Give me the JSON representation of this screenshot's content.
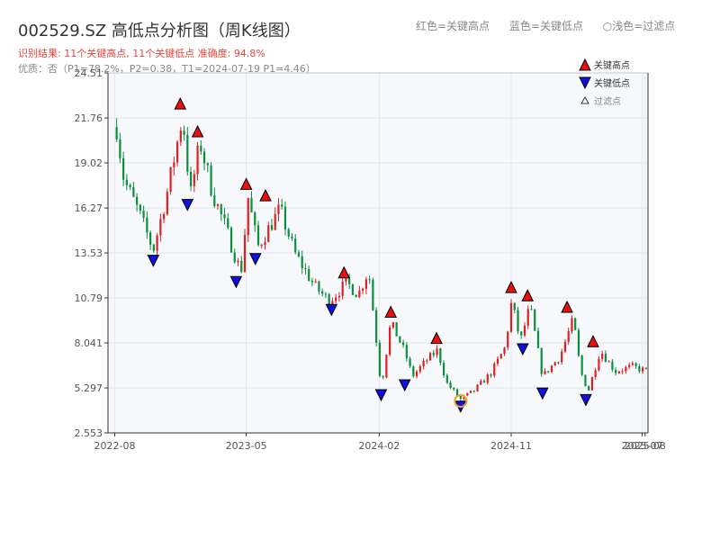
{
  "header": {
    "title": "002529.SZ 高低点分析图（周K线图）",
    "legend_top": [
      "红色=关键高点",
      "蓝色=关键低点",
      "○浅色=过滤点"
    ],
    "result_line": "识别结果: 11个关键高点, 11个关键低点   准确度: 94.8%",
    "quality_line": "优质：否（P1=78.2%，P2=0.38，T1=2024-07-19 P1=4.46）"
  },
  "chart_data": {
    "type": "candlestick",
    "title": "002529.SZ 高低点分析图（周K线图）",
    "y_ticks": [
      "2.553",
      "5.297",
      "8.041",
      "10.79",
      "13.53",
      "16.27",
      "19.02",
      "21.76",
      "24.51"
    ],
    "ylim": [
      2.553,
      24.51
    ],
    "x_ticks": [
      "2022-08",
      "2023-05",
      "2024-02",
      "2024-11",
      "2025-07",
      "2025-08"
    ],
    "xlim": [
      "2022-08",
      "2025-08"
    ],
    "legend": [
      "关键高点",
      "关键低点",
      "过滤点"
    ],
    "colors": {
      "up": "#dd2020",
      "down": "#0a8f3c",
      "high_marker": "#e81010",
      "low_marker": "#1010e0",
      "filtered": "#f0a020"
    },
    "close_path": [
      [
        "2022-08-05",
        21.2
      ],
      [
        "2022-08-20",
        18.0
      ],
      [
        "2022-09-20",
        16.0
      ],
      [
        "2022-10-20",
        13.7
      ],
      [
        "2022-11-20",
        17.5
      ],
      [
        "2022-12-20",
        21.9
      ],
      [
        "2023-01-05",
        17.0
      ],
      [
        "2023-01-25",
        20.3
      ],
      [
        "2023-02-20",
        17.2
      ],
      [
        "2023-03-20",
        15.0
      ],
      [
        "2023-04-20",
        12.3
      ],
      [
        "2023-05-05",
        16.9
      ],
      [
        "2023-05-25",
        13.9
      ],
      [
        "2023-07-10",
        16.2
      ],
      [
        "2023-08-10",
        13.5
      ],
      [
        "2023-09-20",
        11.5
      ],
      [
        "2023-10-20",
        10.6
      ],
      [
        "2023-11-25",
        11.7
      ],
      [
        "2023-12-20",
        11.0
      ],
      [
        "2024-01-10",
        12.5
      ],
      [
        "2024-01-25",
        8.5
      ],
      [
        "2024-02-05",
        5.3
      ],
      [
        "2024-02-25",
        9.3
      ],
      [
        "2024-03-25",
        7.5
      ],
      [
        "2024-04-10",
        6.0
      ],
      [
        "2024-05-10",
        7.0
      ],
      [
        "2024-06-01",
        7.6
      ],
      [
        "2024-06-20",
        5.6
      ],
      [
        "2024-07-19",
        4.6
      ],
      [
        "2024-08-15",
        5.1
      ],
      [
        "2024-09-20",
        6.2
      ],
      [
        "2024-10-20",
        7.8
      ],
      [
        "2024-11-02",
        10.6
      ],
      [
        "2024-11-20",
        8.1
      ],
      [
        "2024-12-10",
        10.3
      ],
      [
        "2025-01-05",
        6.0
      ],
      [
        "2025-02-10",
        7.2
      ],
      [
        "2025-03-10",
        9.5
      ],
      [
        "2025-03-25",
        6.3
      ],
      [
        "2025-04-10",
        5.1
      ],
      [
        "2025-05-05",
        7.6
      ],
      [
        "2025-06-05",
        6.3
      ],
      [
        "2025-07-10",
        6.6
      ],
      [
        "2025-08-10",
        6.3
      ]
    ],
    "key_highs": [
      {
        "date": "2022-12-15",
        "price": 22.2
      },
      {
        "date": "2023-01-20",
        "price": 20.5
      },
      {
        "date": "2023-05-01",
        "price": 17.3
      },
      {
        "date": "2023-06-10",
        "price": 16.6
      },
      {
        "date": "2023-11-20",
        "price": 11.9
      },
      {
        "date": "2024-02-25",
        "price": 9.5
      },
      {
        "date": "2024-05-30",
        "price": 7.9
      },
      {
        "date": "2024-11-01",
        "price": 11.0
      },
      {
        "date": "2024-12-05",
        "price": 10.5
      },
      {
        "date": "2025-02-25",
        "price": 9.8
      },
      {
        "date": "2025-04-20",
        "price": 7.7
      }
    ],
    "key_lows": [
      {
        "date": "2022-10-20",
        "price": 13.5
      },
      {
        "date": "2022-12-30",
        "price": 16.9
      },
      {
        "date": "2023-04-10",
        "price": 12.2
      },
      {
        "date": "2023-05-20",
        "price": 13.6
      },
      {
        "date": "2023-10-25",
        "price": 10.5
      },
      {
        "date": "2024-02-05",
        "price": 5.3
      },
      {
        "date": "2024-03-25",
        "price": 5.9
      },
      {
        "date": "2024-11-25",
        "price": 8.1
      },
      {
        "date": "2025-01-05",
        "price": 5.4
      },
      {
        "date": "2025-04-05",
        "price": 5.0
      },
      {
        "date": "2024-07-19",
        "price": 4.6
      }
    ],
    "filtered_points": [
      {
        "date": "2024-07-19",
        "price": 4.5
      }
    ]
  }
}
